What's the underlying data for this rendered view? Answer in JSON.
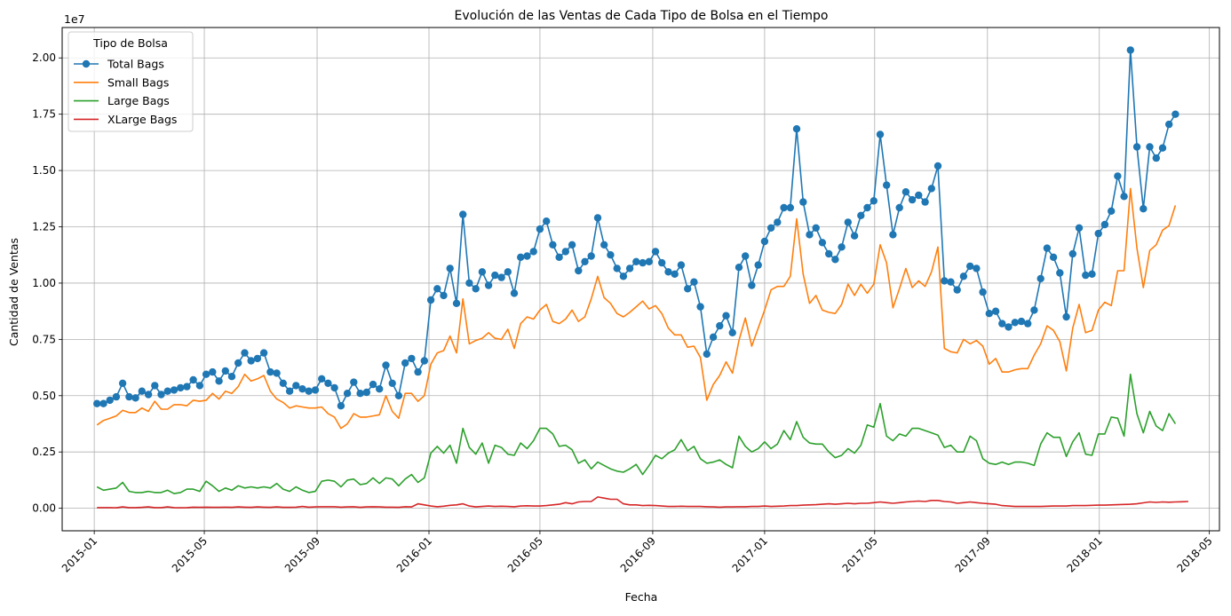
{
  "chart_data": {
    "type": "line",
    "title": "Evolución de las Ventas de Cada Tipo de Bolsa en el Tiempo",
    "xlabel": "Fecha",
    "ylabel": "Cantidad de Ventas",
    "y_offset_label": "1e7",
    "x_range": [
      "2014-11-27",
      "2018-05-12"
    ],
    "ylim": [
      -0.1,
      2.135
    ],
    "y_unit": "1e7",
    "grid": true,
    "legend_title": "Tipo de Bolsa",
    "legend_position": "upper-left",
    "x_ticks": [
      {
        "date": "2015-01-01",
        "label": "2015-01"
      },
      {
        "date": "2015-05-01",
        "label": "2015-05"
      },
      {
        "date": "2015-09-01",
        "label": "2015-09"
      },
      {
        "date": "2016-01-01",
        "label": "2016-01"
      },
      {
        "date": "2016-05-01",
        "label": "2016-05"
      },
      {
        "date": "2016-09-01",
        "label": "2016-09"
      },
      {
        "date": "2017-01-01",
        "label": "2017-01"
      },
      {
        "date": "2017-05-01",
        "label": "2017-05"
      },
      {
        "date": "2017-09-01",
        "label": "2017-09"
      },
      {
        "date": "2018-01-01",
        "label": "2018-01"
      },
      {
        "date": "2018-05-01",
        "label": "2018-05"
      }
    ],
    "y_ticks": [
      {
        "value": 0.0,
        "label": "0.00"
      },
      {
        "value": 0.25,
        "label": "0.25"
      },
      {
        "value": 0.5,
        "label": "0.50"
      },
      {
        "value": 0.75,
        "label": "0.75"
      },
      {
        "value": 1.0,
        "label": "1.00"
      },
      {
        "value": 1.25,
        "label": "1.25"
      },
      {
        "value": 1.5,
        "label": "1.50"
      },
      {
        "value": 1.75,
        "label": "1.75"
      },
      {
        "value": 2.0,
        "label": "2.00"
      }
    ],
    "start_date": "2015-01-04",
    "step_days": 7,
    "series": [
      {
        "name": "Total Bags",
        "color": "#1f77b4",
        "marker": "circle",
        "values": [
          0.465,
          0.465,
          0.48,
          0.495,
          0.555,
          0.495,
          0.49,
          0.52,
          0.505,
          0.545,
          0.505,
          0.52,
          0.525,
          0.535,
          0.54,
          0.57,
          0.545,
          0.595,
          0.605,
          0.565,
          0.61,
          0.585,
          0.645,
          0.69,
          0.655,
          0.665,
          0.69,
          0.605,
          0.6,
          0.555,
          0.52,
          0.545,
          0.53,
          0.52,
          0.525,
          0.575,
          0.555,
          0.535,
          0.455,
          0.51,
          0.56,
          0.51,
          0.515,
          0.55,
          0.53,
          0.635,
          0.555,
          0.5,
          0.645,
          0.665,
          0.605,
          0.655,
          0.925,
          0.975,
          0.945,
          1.065,
          0.91,
          1.305,
          1.0,
          0.975,
          1.05,
          0.99,
          1.035,
          1.025,
          1.05,
          0.955,
          1.115,
          1.12,
          1.14,
          1.24,
          1.275,
          1.17,
          1.115,
          1.14,
          1.17,
          1.055,
          1.095,
          1.12,
          1.29,
          1.17,
          1.125,
          1.065,
          1.03,
          1.065,
          1.095,
          1.09,
          1.095,
          1.14,
          1.09,
          1.05,
          1.04,
          1.08,
          0.975,
          1.005,
          0.895,
          0.685,
          0.76,
          0.81,
          0.855,
          0.78,
          1.07,
          1.12,
          0.99,
          1.08,
          1.185,
          1.245,
          1.27,
          1.335,
          1.335,
          1.685,
          1.36,
          1.215,
          1.245,
          1.18,
          1.13,
          1.105,
          1.16,
          1.27,
          1.21,
          1.3,
          1.335,
          1.365,
          1.66,
          1.435,
          1.215,
          1.335,
          1.405,
          1.37,
          1.39,
          1.36,
          1.42,
          1.52,
          1.01,
          1.005,
          0.97,
          1.03,
          1.075,
          1.065,
          0.96,
          0.865,
          0.875,
          0.82,
          0.805,
          0.825,
          0.83,
          0.82,
          0.88,
          1.02,
          1.155,
          1.115,
          1.045,
          0.85,
          1.13,
          1.245,
          1.035,
          1.04,
          1.22,
          1.26,
          1.32,
          1.475,
          1.385,
          2.035,
          1.605,
          1.33,
          1.605,
          1.555,
          1.6,
          1.705,
          1.75
        ]
      },
      {
        "name": "Small Bags",
        "color": "#ff7f0e",
        "marker": "none",
        "values": [
          0.37,
          0.39,
          0.4,
          0.41,
          0.435,
          0.425,
          0.425,
          0.445,
          0.43,
          0.475,
          0.44,
          0.44,
          0.46,
          0.46,
          0.455,
          0.48,
          0.475,
          0.48,
          0.51,
          0.485,
          0.52,
          0.51,
          0.54,
          0.595,
          0.565,
          0.575,
          0.59,
          0.52,
          0.485,
          0.47,
          0.445,
          0.455,
          0.45,
          0.445,
          0.445,
          0.45,
          0.42,
          0.405,
          0.355,
          0.375,
          0.42,
          0.405,
          0.405,
          0.41,
          0.415,
          0.5,
          0.43,
          0.4,
          0.51,
          0.51,
          0.475,
          0.5,
          0.64,
          0.69,
          0.7,
          0.765,
          0.69,
          0.93,
          0.73,
          0.745,
          0.755,
          0.78,
          0.755,
          0.75,
          0.795,
          0.71,
          0.82,
          0.85,
          0.84,
          0.88,
          0.905,
          0.83,
          0.82,
          0.84,
          0.88,
          0.83,
          0.85,
          0.93,
          1.03,
          0.935,
          0.91,
          0.865,
          0.85,
          0.87,
          0.895,
          0.92,
          0.885,
          0.9,
          0.865,
          0.8,
          0.77,
          0.77,
          0.715,
          0.72,
          0.67,
          0.48,
          0.55,
          0.59,
          0.65,
          0.6,
          0.745,
          0.845,
          0.72,
          0.8,
          0.88,
          0.97,
          0.985,
          0.985,
          1.03,
          1.285,
          1.04,
          0.91,
          0.945,
          0.88,
          0.87,
          0.865,
          0.905,
          0.995,
          0.945,
          0.995,
          0.955,
          0.995,
          1.17,
          1.09,
          0.89,
          0.975,
          1.065,
          0.98,
          1.01,
          0.985,
          1.05,
          1.16,
          0.71,
          0.695,
          0.69,
          0.75,
          0.73,
          0.745,
          0.72,
          0.64,
          0.665,
          0.605,
          0.605,
          0.615,
          0.62,
          0.62,
          0.68,
          0.73,
          0.81,
          0.79,
          0.74,
          0.61,
          0.8,
          0.905,
          0.78,
          0.79,
          0.88,
          0.915,
          0.9,
          1.055,
          1.055,
          1.42,
          1.155,
          0.98,
          1.145,
          1.17,
          1.235,
          1.255,
          1.345
        ]
      },
      {
        "name": "Large Bags",
        "color": "#2ca02c",
        "marker": "none",
        "values": [
          0.095,
          0.08,
          0.085,
          0.09,
          0.115,
          0.075,
          0.07,
          0.07,
          0.075,
          0.07,
          0.07,
          0.08,
          0.065,
          0.07,
          0.085,
          0.085,
          0.075,
          0.12,
          0.1,
          0.075,
          0.09,
          0.08,
          0.1,
          0.09,
          0.095,
          0.09,
          0.095,
          0.09,
          0.11,
          0.085,
          0.075,
          0.095,
          0.08,
          0.07,
          0.075,
          0.12,
          0.125,
          0.12,
          0.095,
          0.125,
          0.13,
          0.105,
          0.11,
          0.135,
          0.11,
          0.135,
          0.13,
          0.1,
          0.13,
          0.15,
          0.115,
          0.135,
          0.245,
          0.275,
          0.245,
          0.28,
          0.2,
          0.355,
          0.27,
          0.24,
          0.29,
          0.2,
          0.28,
          0.27,
          0.24,
          0.235,
          0.29,
          0.265,
          0.3,
          0.355,
          0.355,
          0.33,
          0.275,
          0.28,
          0.26,
          0.2,
          0.215,
          0.175,
          0.205,
          0.19,
          0.175,
          0.165,
          0.16,
          0.175,
          0.195,
          0.15,
          0.19,
          0.235,
          0.22,
          0.245,
          0.26,
          0.305,
          0.255,
          0.275,
          0.22,
          0.2,
          0.205,
          0.215,
          0.195,
          0.18,
          0.32,
          0.275,
          0.25,
          0.265,
          0.295,
          0.265,
          0.285,
          0.345,
          0.305,
          0.385,
          0.315,
          0.29,
          0.285,
          0.285,
          0.25,
          0.225,
          0.235,
          0.265,
          0.245,
          0.28,
          0.37,
          0.36,
          0.465,
          0.32,
          0.3,
          0.33,
          0.32,
          0.355,
          0.355,
          0.345,
          0.335,
          0.325,
          0.27,
          0.28,
          0.25,
          0.25,
          0.32,
          0.3,
          0.22,
          0.2,
          0.195,
          0.205,
          0.195,
          0.205,
          0.205,
          0.2,
          0.19,
          0.285,
          0.335,
          0.315,
          0.315,
          0.23,
          0.295,
          0.335,
          0.24,
          0.235,
          0.33,
          0.33,
          0.405,
          0.4,
          0.32,
          0.595,
          0.42,
          0.335,
          0.43,
          0.365,
          0.345,
          0.42,
          0.375
        ]
      },
      {
        "name": "XLarge Bags",
        "color": "#d62728",
        "marker": "none",
        "values": [
          0.003,
          0.003,
          0.003,
          0.002,
          0.006,
          0.003,
          0.003,
          0.004,
          0.006,
          0.003,
          0.003,
          0.006,
          0.003,
          0.002,
          0.003,
          0.005,
          0.004,
          0.005,
          0.004,
          0.004,
          0.005,
          0.004,
          0.006,
          0.005,
          0.004,
          0.006,
          0.005,
          0.004,
          0.006,
          0.004,
          0.004,
          0.005,
          0.008,
          0.005,
          0.006,
          0.007,
          0.007,
          0.007,
          0.005,
          0.006,
          0.007,
          0.004,
          0.006,
          0.007,
          0.006,
          0.005,
          0.005,
          0.004,
          0.007,
          0.006,
          0.02,
          0.015,
          0.01,
          0.007,
          0.009,
          0.013,
          0.015,
          0.02,
          0.01,
          0.006,
          0.008,
          0.01,
          0.008,
          0.009,
          0.008,
          0.007,
          0.01,
          0.011,
          0.01,
          0.01,
          0.012,
          0.015,
          0.018,
          0.025,
          0.02,
          0.028,
          0.03,
          0.03,
          0.05,
          0.045,
          0.04,
          0.04,
          0.02,
          0.015,
          0.015,
          0.012,
          0.013,
          0.012,
          0.01,
          0.008,
          0.008,
          0.009,
          0.008,
          0.008,
          0.008,
          0.007,
          0.006,
          0.005,
          0.006,
          0.006,
          0.007,
          0.007,
          0.008,
          0.008,
          0.01,
          0.008,
          0.009,
          0.01,
          0.012,
          0.012,
          0.014,
          0.015,
          0.016,
          0.018,
          0.02,
          0.018,
          0.02,
          0.022,
          0.02,
          0.022,
          0.022,
          0.025,
          0.028,
          0.025,
          0.022,
          0.025,
          0.028,
          0.03,
          0.032,
          0.03,
          0.035,
          0.035,
          0.03,
          0.028,
          0.022,
          0.025,
          0.028,
          0.025,
          0.022,
          0.02,
          0.018,
          0.012,
          0.01,
          0.008,
          0.008,
          0.008,
          0.008,
          0.008,
          0.009,
          0.01,
          0.01,
          0.01,
          0.012,
          0.012,
          0.012,
          0.013,
          0.014,
          0.014,
          0.015,
          0.016,
          0.017,
          0.018,
          0.02,
          0.024,
          0.028,
          0.026,
          0.028,
          0.027,
          0.028,
          0.029,
          0.03
        ]
      }
    ]
  }
}
